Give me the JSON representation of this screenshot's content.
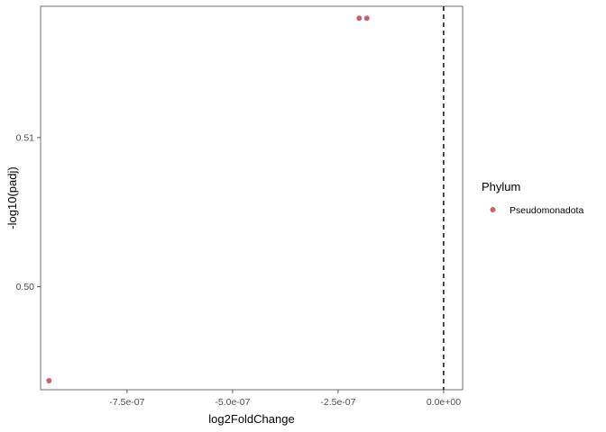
{
  "chart_data": {
    "type": "scatter",
    "xlabel": "log2FoldChange",
    "ylabel": "-log10(padj)",
    "xlim": [
      -9.55e-07,
      4.5e-08
    ],
    "ylim": [
      0.4931,
      0.5188
    ],
    "x_ticks": [
      {
        "value": -7.5e-07,
        "label": "-7.5e-07"
      },
      {
        "value": -5e-07,
        "label": "-5.0e-07"
      },
      {
        "value": -2.5e-07,
        "label": "-2.5e-07"
      },
      {
        "value": 0.0,
        "label": "0.0e+00"
      }
    ],
    "y_ticks": [
      {
        "value": 0.5,
        "label": "0.50"
      },
      {
        "value": 0.51,
        "label": "0.51"
      }
    ],
    "reference_line": {
      "x": 0.0,
      "style": "dashed",
      "color": "#000000"
    },
    "grid": false,
    "series": [
      {
        "name": "Pseudomonadota",
        "color": "#c9606e",
        "points": [
          {
            "x": -9.35e-07,
            "y": 0.4937
          },
          {
            "x": -2e-07,
            "y": 0.518
          },
          {
            "x": -1.82e-07,
            "y": 0.518
          }
        ]
      }
    ],
    "legend": {
      "title": "Phylum",
      "placement": "right"
    }
  }
}
